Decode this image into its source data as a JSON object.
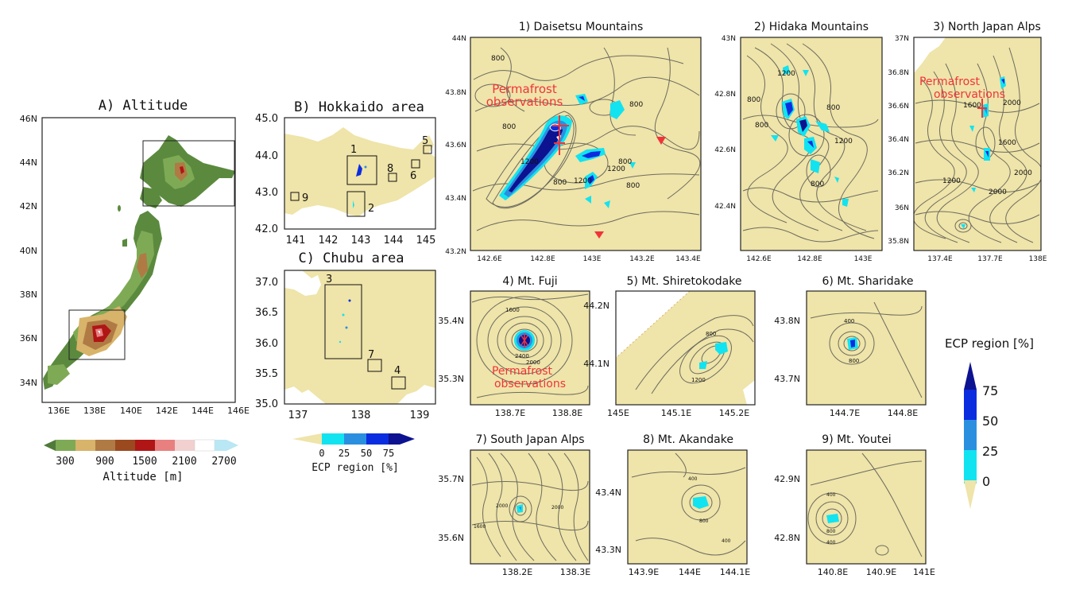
{
  "colors": {
    "background_map": "#efe4a9",
    "ocean": "#ffffff",
    "ecp_0_25": "#12e3f0",
    "ecp_25_50": "#2b8fe0",
    "ecp_50_75": "#0b2de0",
    "ecp_75_plus": "#0c1290",
    "permafrost_marker": "#f0343a",
    "contour": "#6b6b60"
  },
  "panel_a": {
    "title": "A) Altitude",
    "lat_ticks": [
      "46N",
      "44N",
      "42N",
      "40N",
      "38N",
      "36N",
      "34N"
    ],
    "lon_ticks": [
      "136E",
      "138E",
      "140E",
      "142E",
      "144E",
      "146E"
    ],
    "colorbar_ticks": [
      "300",
      "900",
      "1500",
      "2100",
      "2700"
    ],
    "colorbar_label": "Altitude [m]",
    "colorbar_colors": [
      "#4f7a3a",
      "#7faa55",
      "#d8b36a",
      "#b07a45",
      "#9b4a20",
      "#b01616",
      "#e88080",
      "#f2d0d0",
      "#ffffff",
      "#b9e7f3"
    ]
  },
  "panel_b": {
    "title": "B) Hokkaido area",
    "lat_ticks": [
      "45.0",
      "44.0",
      "43.0",
      "42.0"
    ],
    "lon_ticks": [
      "141",
      "142",
      "143",
      "144",
      "145"
    ],
    "box_labels": [
      "1",
      "2",
      "5",
      "6",
      "8",
      "9"
    ]
  },
  "panel_c": {
    "title": "C) Chubu area",
    "lat_ticks": [
      "37.0",
      "36.5",
      "36.0",
      "35.5",
      "35.0"
    ],
    "lon_ticks": [
      "137",
      "138",
      "139"
    ],
    "box_labels": [
      "3",
      "7",
      "4"
    ],
    "colorbar_ticks": [
      "0",
      "25",
      "50",
      "75"
    ],
    "colorbar_label": "ECP region [%]"
  },
  "ecp_colorbar": {
    "label": "ECP region [%]",
    "ticks": [
      "75",
      "50",
      "25",
      "0"
    ]
  },
  "annotation": {
    "permafrost_line1": "Permafrost",
    "permafrost_line2": "observations"
  },
  "panels": [
    {
      "id": "p1",
      "title": "1) Daisetsu Mountains",
      "lat_ticks": [
        "44N",
        "43.8N",
        "43.6N",
        "43.4N",
        "43.2N"
      ],
      "lon_ticks": [
        "142.6E",
        "142.8E",
        "143E",
        "143.2E",
        "143.4E"
      ],
      "contour_labels": [
        "800",
        "1200",
        "800",
        "800",
        "1200",
        "800",
        "800",
        "1200",
        "800"
      ]
    },
    {
      "id": "p2",
      "title": "2) Hidaka Mountains",
      "lat_ticks": [
        "43N",
        "42.8N",
        "42.6N",
        "42.4N"
      ],
      "lon_ticks": [
        "142.6E",
        "142.8E",
        "143E"
      ],
      "contour_labels": [
        "1200",
        "800",
        "800",
        "800",
        "800",
        "1200"
      ]
    },
    {
      "id": "p3",
      "title": "3) North Japan Alps",
      "lat_ticks": [
        "37N",
        "36.8N",
        "36.6N",
        "36.4N",
        "36.2N",
        "36N",
        "35.8N"
      ],
      "lon_ticks": [
        "137.4E",
        "137.7E",
        "138E"
      ],
      "contour_labels": [
        "1600",
        "2000",
        "1600",
        "2000",
        "1200",
        "2000"
      ]
    },
    {
      "id": "p4",
      "title": "4) Mt. Fuji",
      "lat_ticks": [
        "35.4N",
        "35.3N"
      ],
      "lon_ticks": [
        "138.7E",
        "138.8E"
      ],
      "contour_labels": [
        "1600",
        "2000",
        "2400"
      ]
    },
    {
      "id": "p5",
      "title": "5) Mt. Shiretokodake",
      "lat_ticks": [
        "44.2N",
        "44.1N"
      ],
      "lon_ticks": [
        "145E",
        "145.1E",
        "145.2E"
      ],
      "contour_labels": [
        "800",
        "1200"
      ]
    },
    {
      "id": "p6",
      "title": "6) Mt. Sharidake",
      "lat_ticks": [
        "43.8N",
        "43.7N"
      ],
      "lon_ticks": [
        "144.7E",
        "144.8E"
      ],
      "contour_labels": [
        "400",
        "800"
      ]
    },
    {
      "id": "p7",
      "title": "7) South Japan Alps",
      "lat_ticks": [
        "35.7N",
        "35.6N"
      ],
      "lon_ticks": [
        "138.2E",
        "138.3E"
      ],
      "contour_labels": [
        "2000",
        "1600",
        "2000"
      ]
    },
    {
      "id": "p8",
      "title": "8) Mt. Akandake",
      "lat_ticks": [
        "43.4N",
        "43.3N"
      ],
      "lon_ticks": [
        "143.9E",
        "144E",
        "144.1E"
      ],
      "contour_labels": [
        "400",
        "800",
        "400"
      ]
    },
    {
      "id": "p9",
      "title": "9) Mt. Youtei",
      "lat_ticks": [
        "42.9N",
        "42.8N"
      ],
      "lon_ticks": [
        "140.8E",
        "140.9E",
        "141E"
      ],
      "contour_labels": [
        "400",
        "800",
        "400"
      ]
    }
  ]
}
